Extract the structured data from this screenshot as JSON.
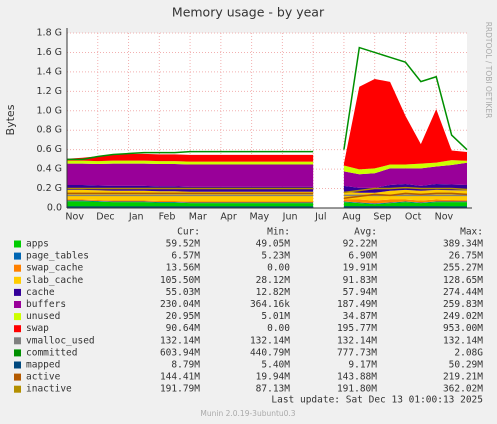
{
  "chart_data": {
    "type": "area",
    "title": "Memory usage - by year",
    "y_label": "Bytes",
    "side_text": "RRDTOOL / TOBI OETIKER",
    "last_update": "Last update:  Sat Dec 13 01:00:13 2025",
    "footer": "Munin 2.0.19-3ubuntu0.3",
    "legend_headers": [
      "Cur:",
      "Min:",
      "Avg:",
      "Max:"
    ],
    "grid": true,
    "ylim": [
      0,
      1.8
    ],
    "yticks": [
      {
        "value": 0,
        "label": "0.0"
      },
      {
        "value": 0.2,
        "label": "0.2 G"
      },
      {
        "value": 0.4,
        "label": "0.4 G"
      },
      {
        "value": 0.6,
        "label": "0.6 G"
      },
      {
        "value": 0.8,
        "label": "0.8 G"
      },
      {
        "value": 1.0,
        "label": "1.0 G"
      },
      {
        "value": 1.2,
        "label": "1.2 G"
      },
      {
        "value": 1.4,
        "label": "1.4 G"
      },
      {
        "value": 1.6,
        "label": "1.6 G"
      },
      {
        "value": 1.8,
        "label": "1.8 G"
      }
    ],
    "categories": [
      "Nov",
      null,
      "Dec",
      null,
      "Jan",
      null,
      "Feb",
      null,
      "Mar",
      null,
      "Apr",
      null,
      "May",
      null,
      "Jun",
      null,
      "Jul",
      null,
      "Aug",
      null,
      "Sep",
      null,
      "Oct",
      null,
      "Nov",
      null,
      null
    ],
    "series": [
      {
        "name": "apps",
        "color": "#00cc00",
        "draw": "area",
        "cur": "59.52M",
        "min": "49.05M",
        "avg": "92.22M",
        "max": "389.34M",
        "values": [
          0.07,
          0.07,
          0.065,
          0.06,
          0.06,
          0.06,
          0.055,
          0.055,
          0.05,
          0.05,
          0.05,
          0.05,
          0.05,
          0.05,
          0.05,
          0.05,
          0.05,
          null,
          0.06,
          0.05,
          0.04,
          0.05,
          0.06,
          0.05,
          0.06,
          0.06,
          0.06
        ]
      },
      {
        "name": "page_tables",
        "color": "#0066b3",
        "draw": "area",
        "cur": "6.57M",
        "min": "5.23M",
        "avg": "6.90M",
        "max": "26.75M",
        "values": [
          0.007,
          0.007,
          0.007,
          0.007,
          0.007,
          0.007,
          0.007,
          0.007,
          0.007,
          0.007,
          0.007,
          0.007,
          0.007,
          0.007,
          0.007,
          0.007,
          0.007,
          null,
          0.007,
          0.007,
          0.007,
          0.007,
          0.007,
          0.007,
          0.007,
          0.007,
          0.007
        ]
      },
      {
        "name": "swap_cache",
        "color": "#ff8000",
        "draw": "area",
        "cur": "13.56M",
        "min": "0.00",
        "avg": "19.91M",
        "max": "255.27M",
        "values": [
          0.01,
          0.01,
          0.01,
          0.01,
          0.01,
          0.01,
          0.01,
          0.01,
          0.01,
          0.01,
          0.01,
          0.01,
          0.01,
          0.01,
          0.01,
          0.01,
          0.01,
          null,
          0.02,
          0.03,
          0.03,
          0.03,
          0.02,
          0.02,
          0.02,
          0.015,
          0.014
        ]
      },
      {
        "name": "slab_cache",
        "color": "#ffcc00",
        "draw": "area",
        "cur": "105.50M",
        "min": "28.12M",
        "avg": "91.83M",
        "max": "128.65M",
        "values": [
          0.1,
          0.1,
          0.1,
          0.1,
          0.1,
          0.1,
          0.1,
          0.1,
          0.1,
          0.1,
          0.1,
          0.1,
          0.1,
          0.1,
          0.1,
          0.1,
          0.1,
          null,
          0.08,
          0.07,
          0.08,
          0.09,
          0.1,
          0.1,
          0.1,
          0.1,
          0.1
        ]
      },
      {
        "name": "cache",
        "color": "#330099",
        "draw": "area",
        "cur": "55.03M",
        "min": "12.82M",
        "avg": "57.94M",
        "max": "274.44M",
        "values": [
          0.05,
          0.05,
          0.05,
          0.05,
          0.05,
          0.05,
          0.05,
          0.05,
          0.05,
          0.05,
          0.05,
          0.05,
          0.05,
          0.05,
          0.05,
          0.05,
          0.05,
          null,
          0.06,
          0.05,
          0.05,
          0.06,
          0.06,
          0.05,
          0.06,
          0.06,
          0.055
        ]
      },
      {
        "name": "buffers",
        "color": "#990099",
        "draw": "area",
        "cur": "230.04M",
        "min": "364.16k",
        "avg": "187.49M",
        "max": "259.83M",
        "values": [
          0.22,
          0.22,
          0.22,
          0.23,
          0.23,
          0.23,
          0.23,
          0.23,
          0.23,
          0.23,
          0.23,
          0.23,
          0.23,
          0.23,
          0.23,
          0.23,
          0.23,
          null,
          0.15,
          0.14,
          0.15,
          0.17,
          0.16,
          0.18,
          0.18,
          0.2,
          0.23
        ]
      },
      {
        "name": "unused",
        "color": "#ccff00",
        "draw": "area",
        "cur": "20.95M",
        "min": "5.01M",
        "avg": "34.87M",
        "max": "249.02M",
        "values": [
          0.03,
          0.03,
          0.03,
          0.03,
          0.03,
          0.03,
          0.03,
          0.03,
          0.03,
          0.03,
          0.03,
          0.03,
          0.03,
          0.03,
          0.03,
          0.03,
          0.03,
          null,
          0.06,
          0.05,
          0.05,
          0.04,
          0.04,
          0.05,
          0.04,
          0.05,
          0.02
        ]
      },
      {
        "name": "swap",
        "color": "#ff0000",
        "draw": "area",
        "cur": "90.64M",
        "min": "0.00",
        "avg": "195.77M",
        "max": "953.00M",
        "values": [
          0.02,
          0.03,
          0.05,
          0.06,
          0.07,
          0.07,
          0.07,
          0.07,
          0.07,
          0.07,
          0.07,
          0.07,
          0.07,
          0.07,
          0.07,
          0.07,
          0.07,
          null,
          0.02,
          0.85,
          0.92,
          0.85,
          0.5,
          0.2,
          0.55,
          0.1,
          0.09
        ]
      },
      {
        "name": "vmalloc_used",
        "color": "#808080",
        "draw": "line",
        "cur": "132.14M",
        "min": "132.14M",
        "avg": "132.14M",
        "max": "132.14M",
        "values": [
          0.13,
          0.13,
          0.13,
          0.13,
          0.13,
          0.13,
          0.13,
          0.13,
          0.13,
          0.13,
          0.13,
          0.13,
          0.13,
          0.13,
          0.13,
          0.13,
          0.13,
          null,
          0.13,
          0.13,
          0.13,
          0.13,
          0.13,
          0.13,
          0.13,
          0.13,
          0.13
        ]
      },
      {
        "name": "committed",
        "color": "#008f00",
        "draw": "line",
        "cur": "603.94M",
        "min": "440.79M",
        "avg": "777.73M",
        "max": "2.08G",
        "values": [
          0.5,
          0.5,
          0.53,
          0.55,
          0.56,
          0.57,
          0.57,
          0.57,
          0.58,
          0.58,
          0.58,
          0.58,
          0.58,
          0.58,
          0.58,
          0.58,
          0.58,
          null,
          0.6,
          1.65,
          1.6,
          1.55,
          1.5,
          1.3,
          1.35,
          0.75,
          0.6
        ]
      },
      {
        "name": "mapped",
        "color": "#00487d",
        "draw": "line",
        "cur": "8.79M",
        "min": "5.40M",
        "avg": "9.17M",
        "max": "50.29M",
        "values": [
          0.009,
          0.009,
          0.009,
          0.009,
          0.009,
          0.009,
          0.009,
          0.009,
          0.009,
          0.009,
          0.009,
          0.009,
          0.009,
          0.009,
          0.009,
          0.009,
          0.009,
          null,
          0.01,
          0.01,
          0.01,
          0.01,
          0.01,
          0.01,
          0.01,
          0.009,
          0.009
        ]
      },
      {
        "name": "active",
        "color": "#b35a00",
        "draw": "line",
        "cur": "144.41M",
        "min": "19.94M",
        "avg": "143.88M",
        "max": "219.21M",
        "values": [
          0.15,
          0.15,
          0.15,
          0.15,
          0.15,
          0.15,
          0.15,
          0.15,
          0.15,
          0.15,
          0.15,
          0.15,
          0.15,
          0.15,
          0.15,
          0.15,
          0.15,
          null,
          0.1,
          0.12,
          0.14,
          0.13,
          0.15,
          0.14,
          0.15,
          0.15,
          0.14
        ]
      },
      {
        "name": "inactive",
        "color": "#b38f00",
        "draw": "line",
        "cur": "191.79M",
        "min": "87.13M",
        "avg": "191.80M",
        "max": "362.02M",
        "values": [
          0.2,
          0.2,
          0.2,
          0.2,
          0.2,
          0.2,
          0.2,
          0.2,
          0.2,
          0.2,
          0.2,
          0.2,
          0.2,
          0.2,
          0.2,
          0.2,
          0.2,
          null,
          0.16,
          0.18,
          0.2,
          0.2,
          0.21,
          0.2,
          0.2,
          0.2,
          0.19
        ]
      }
    ]
  }
}
